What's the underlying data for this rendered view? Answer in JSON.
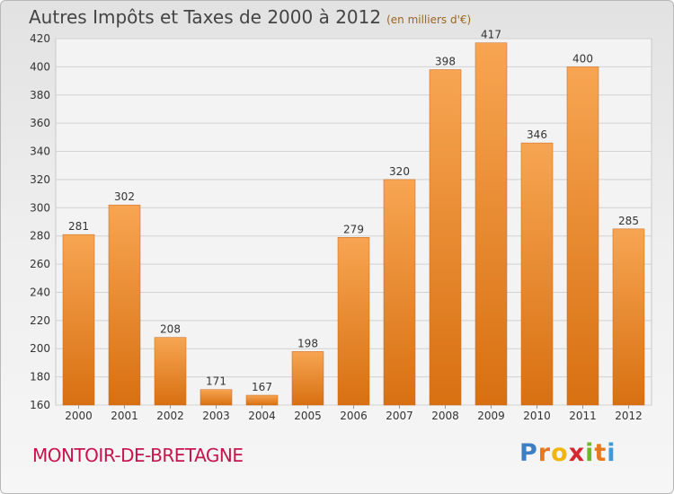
{
  "chart_data": {
    "type": "bar",
    "title": "Autres Impôts et Taxes de 2000 à 2012",
    "subtitle": "(en milliers d'€)",
    "categories": [
      "2000",
      "2001",
      "2002",
      "2003",
      "2004",
      "2005",
      "2006",
      "2007",
      "2008",
      "2009",
      "2010",
      "2011",
      "2012"
    ],
    "values": [
      281,
      302,
      208,
      171,
      167,
      198,
      279,
      320,
      398,
      417,
      346,
      400,
      285
    ],
    "ylim": [
      160,
      420
    ],
    "yticks": [
      160,
      180,
      200,
      220,
      240,
      260,
      280,
      300,
      320,
      340,
      360,
      380,
      400,
      420
    ],
    "xlabel": "",
    "ylabel": "",
    "grid": true,
    "bar_color_top": "#f7a552",
    "bar_color_bottom": "#d87011"
  },
  "footer": {
    "city": "MONTOIR-DE-BRETAGNE",
    "logo_letters": [
      "P",
      "r",
      "o",
      "x",
      "i",
      "t",
      "i"
    ],
    "logo_colors": [
      "#3e7fc4",
      "#e8781e",
      "#f1b50f",
      "#d8262e",
      "#72b62b",
      "#e8781e",
      "#3e9bd6"
    ]
  }
}
